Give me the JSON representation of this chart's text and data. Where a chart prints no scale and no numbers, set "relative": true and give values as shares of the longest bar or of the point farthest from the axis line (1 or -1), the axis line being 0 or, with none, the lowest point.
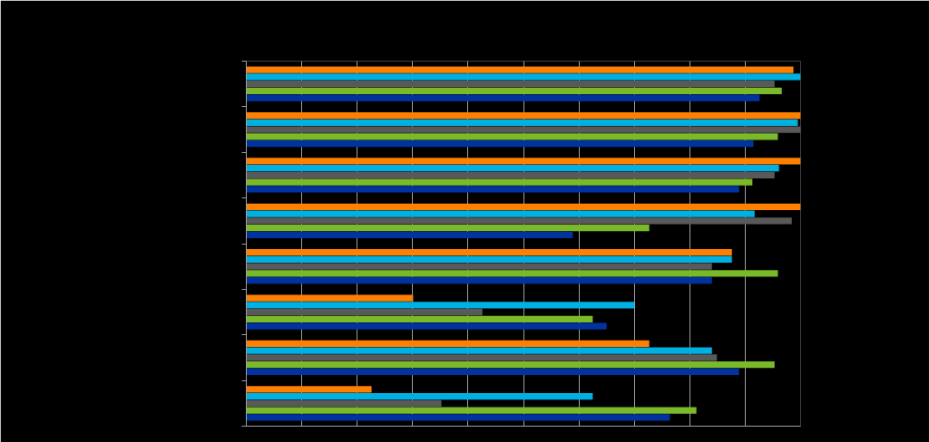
{
  "chart_data": {
    "type": "bar",
    "orientation": "horizontal",
    "relative": true,
    "categories": [
      null,
      null,
      null,
      null,
      null,
      null,
      null,
      null
    ],
    "series": [
      {
        "color": "#ff8000",
        "values": [
          0.987,
          1,
          1,
          1,
          0.876,
          0.301,
          0.727,
          0.226
        ]
      },
      {
        "color": "#00b0e0",
        "values": [
          1,
          0.995,
          0.961,
          0.917,
          0.876,
          0.7,
          0.84,
          0.625
        ]
      },
      {
        "color": "#595959",
        "values": [
          0.953,
          1,
          0.953,
          0.984,
          0.84,
          0.426,
          0.849,
          0.352
        ]
      },
      {
        "color": "#7ab929",
        "values": [
          0.966,
          0.959,
          0.913,
          0.727,
          0.959,
          0.625,
          0.953,
          0.812
        ]
      },
      {
        "color": "#0033a0",
        "values": [
          0.926,
          0.915,
          0.889,
          0.589,
          0.84,
          0.65,
          0.889,
          0.764
        ]
      }
    ],
    "grid": "x",
    "tick_labels": false
  }
}
